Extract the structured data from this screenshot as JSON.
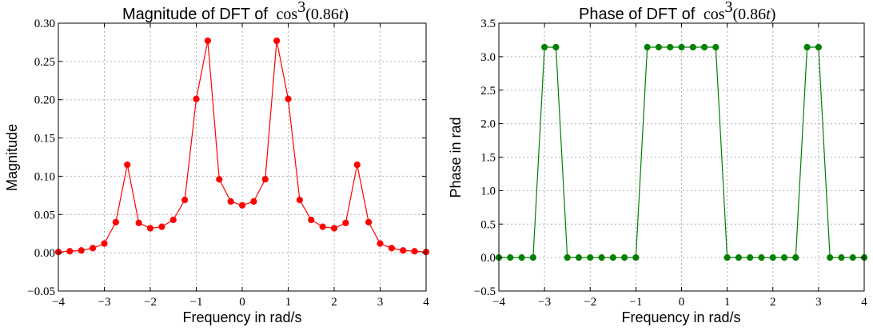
{
  "chart_data": [
    {
      "type": "line",
      "title": "Magnitude of DFT of",
      "title_math": {
        "fn": "cos",
        "exp": "3",
        "arg_open": "(0.86",
        "var": "t",
        "arg_close": ")"
      },
      "xlabel": "Frequency in rad/s",
      "ylabel": "Magnitude",
      "xlim": [
        -4,
        4
      ],
      "ylim": [
        -0.05,
        0.3
      ],
      "xticks": [
        -4,
        -3,
        -2,
        -1,
        0,
        1,
        2,
        3,
        4
      ],
      "yticks": [
        -0.05,
        0.0,
        0.05,
        0.1,
        0.15,
        0.2,
        0.25,
        0.3
      ],
      "xtick_labels": [
        "−4",
        "−3",
        "−2",
        "−1",
        "0",
        "1",
        "2",
        "3",
        "4"
      ],
      "ytick_labels": [
        "−0.05",
        "0.00",
        "0.05",
        "0.10",
        "0.15",
        "0.20",
        "0.25",
        "0.30"
      ],
      "grid": true,
      "color": "#ff0000",
      "series": [
        {
          "x": [
            -4.0,
            -3.75,
            -3.5,
            -3.25,
            -3.0,
            -2.75,
            -2.5,
            -2.25,
            -2.0,
            -1.75,
            -1.5,
            -1.25,
            -1.0,
            -0.75,
            -0.5,
            -0.25,
            0.0,
            0.25,
            0.5,
            0.75,
            1.0,
            1.25,
            1.5,
            1.75,
            2.0,
            2.25,
            2.5,
            2.75,
            3.0,
            3.25,
            3.5,
            3.75,
            4.0
          ],
          "values": [
            0.001,
            0.002,
            0.003,
            0.006,
            0.012,
            0.04,
            0.115,
            0.039,
            0.032,
            0.034,
            0.043,
            0.069,
            0.201,
            0.277,
            0.096,
            0.067,
            0.062,
            0.067,
            0.096,
            0.277,
            0.201,
            0.069,
            0.043,
            0.034,
            0.032,
            0.039,
            0.115,
            0.04,
            0.012,
            0.006,
            0.003,
            0.002,
            0.001
          ]
        }
      ]
    },
    {
      "type": "line",
      "title": "Phase of DFT of",
      "title_math": {
        "fn": "cos",
        "exp": "3",
        "arg_open": "(0.86",
        "var": "t",
        "arg_close": ")"
      },
      "xlabel": "Frequency in rad/s",
      "ylabel": "Phase in rad",
      "xlim": [
        -4,
        4
      ],
      "ylim": [
        -0.5,
        3.5
      ],
      "xticks": [
        -4,
        -3,
        -2,
        -1,
        0,
        1,
        2,
        3,
        4
      ],
      "yticks": [
        -0.5,
        0.0,
        0.5,
        1.0,
        1.5,
        2.0,
        2.5,
        3.0,
        3.5
      ],
      "xtick_labels": [
        "−4",
        "−3",
        "−2",
        "−1",
        "0",
        "1",
        "2",
        "3",
        "4"
      ],
      "ytick_labels": [
        "−0.5",
        "0.0",
        "0.5",
        "1.0",
        "1.5",
        "2.0",
        "2.5",
        "3.0",
        "3.5"
      ],
      "grid": true,
      "color": "#008000",
      "series": [
        {
          "x": [
            -4.0,
            -3.75,
            -3.5,
            -3.25,
            -3.0,
            -2.75,
            -2.5,
            -2.25,
            -2.0,
            -1.75,
            -1.5,
            -1.25,
            -1.0,
            -0.75,
            -0.5,
            -0.25,
            0.0,
            0.25,
            0.5,
            0.75,
            1.0,
            1.25,
            1.5,
            1.75,
            2.0,
            2.25,
            2.5,
            2.75,
            3.0,
            3.25,
            3.5,
            3.75,
            4.0
          ],
          "values": [
            0,
            0,
            0,
            0,
            3.14159,
            3.14159,
            0,
            0,
            0,
            0,
            0,
            0,
            0,
            3.14159,
            3.14159,
            3.14159,
            3.14159,
            3.14159,
            3.14159,
            3.14159,
            0,
            0,
            0,
            0,
            0,
            0,
            0,
            3.14159,
            3.14159,
            0,
            0,
            0,
            0
          ]
        }
      ]
    }
  ]
}
